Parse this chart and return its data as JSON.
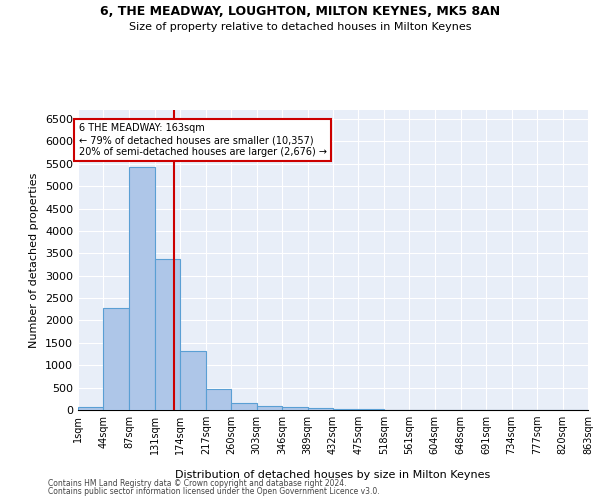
{
  "title1": "6, THE MEADWAY, LOUGHTON, MILTON KEYNES, MK5 8AN",
  "title2": "Size of property relative to detached houses in Milton Keynes",
  "xlabel": "Distribution of detached houses by size in Milton Keynes",
  "ylabel": "Number of detached properties",
  "footnote1": "Contains HM Land Registry data © Crown copyright and database right 2024.",
  "footnote2": "Contains public sector information licensed under the Open Government Licence v3.0.",
  "annotation_line1": "6 THE MEADWAY: 163sqm",
  "annotation_line2": "← 79% of detached houses are smaller (10,357)",
  "annotation_line3": "20% of semi-detached houses are larger (2,676) →",
  "property_size": 163,
  "bin_edges": [
    1,
    44,
    87,
    131,
    174,
    217,
    260,
    303,
    346,
    389,
    432,
    475,
    518,
    561,
    604,
    648,
    691,
    734,
    777,
    820,
    863
  ],
  "bar_heights": [
    75,
    2275,
    5430,
    3375,
    1310,
    480,
    155,
    80,
    65,
    40,
    30,
    20,
    10,
    5,
    5,
    5,
    2,
    2,
    2,
    2
  ],
  "bar_color": "#aec6e8",
  "bar_edge_color": "#5a9fd4",
  "vline_color": "#cc0000",
  "annotation_box_color": "#cc0000",
  "background_color": "#e8eef8",
  "ylim": [
    0,
    6700
  ],
  "yticks": [
    0,
    500,
    1000,
    1500,
    2000,
    2500,
    3000,
    3500,
    4000,
    4500,
    5000,
    5500,
    6000,
    6500
  ]
}
